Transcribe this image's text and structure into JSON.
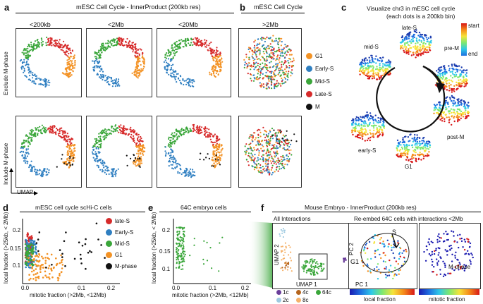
{
  "panels": {
    "a": "a",
    "b": "b",
    "c": "c",
    "d": "d",
    "e": "e",
    "f": "f"
  },
  "panel_a": {
    "title": "mESC Cell Cycle - InnerProduct (200kb res)",
    "cols": [
      "<200kb",
      "<2Mb",
      "<20Mb"
    ],
    "row_labels": [
      "Exclude M-phase",
      "Include M-phase"
    ],
    "axis_label": "UMAP"
  },
  "panel_b": {
    "title": "mESC Cell Cycle",
    "col": ">2Mb"
  },
  "legend_ab": [
    {
      "label": "G1",
      "color": "#f39224"
    },
    {
      "label": "Early-S",
      "color": "#2f7fc1"
    },
    {
      "label": "Mid-S",
      "color": "#3aa63a"
    },
    {
      "label": "Late-S",
      "color": "#d62a2a"
    },
    {
      "label": "M",
      "color": "#111111"
    }
  ],
  "panel_c": {
    "title_line1": "Visualize chr3 in mESC cell cycle",
    "title_line2": "(each dots is a 200kb bin)",
    "phases": [
      "late-S",
      "mid-S",
      "pre-M",
      "early-S",
      "post-M",
      "G1"
    ],
    "colorbar_start": "start",
    "colorbar_end": "end"
  },
  "panel_d": {
    "title": "mESC cell cycle scHi-C cells",
    "xlabel": "mitotic fraction (>2Mb, <12Mb)",
    "ylabel": "local fraction (>25kb, < 2Mb)",
    "xticks": [
      "0.0",
      "0.1",
      "0.2"
    ],
    "yticks": [
      "0.1",
      "0.15",
      "0.2"
    ],
    "legend": [
      {
        "label": "late-S",
        "color": "#d62a2a"
      },
      {
        "label": "Early-S",
        "color": "#2f7fc1"
      },
      {
        "label": "Mid-S",
        "color": "#3aa63a"
      },
      {
        "label": "G1",
        "color": "#f39224"
      },
      {
        "label": "M-phase",
        "color": "#111111"
      }
    ]
  },
  "panel_e": {
    "title": "64C embryo cells",
    "xlabel": "mitotic fraction (>2Mb, <12Mb)",
    "ylabel": "local fraction (>25kb, < 2Mb)",
    "xticks": [
      "0.0",
      "0.1",
      "0.2"
    ],
    "yticks": [
      "0.1",
      "0.15",
      "0.2"
    ]
  },
  "panel_f": {
    "title": "Mouse Embryo - InnerProduct (200kb res)",
    "sub1": "All Interactions",
    "sub2": "Re-embed 64C cells with interactions <2Mb",
    "umap2": "UMAP 2",
    "umap1": "UMAP 1",
    "pc2": "PC 2",
    "pc1": "PC 1",
    "s_label": "S",
    "g1_label": "G1",
    "m_label": "M-phase",
    "legend": [
      {
        "label": "1c",
        "color": "#6a3d9a"
      },
      {
        "label": "4c",
        "color": "#b5651d"
      },
      {
        "label": "64c",
        "color": "#3aa63a"
      },
      {
        "label": "2c",
        "color": "#9ecae1"
      },
      {
        "label": "8c",
        "color": "#f5b26b"
      }
    ],
    "cbar1": "local fraction",
    "cbar2": "mitotic fraction"
  }
}
